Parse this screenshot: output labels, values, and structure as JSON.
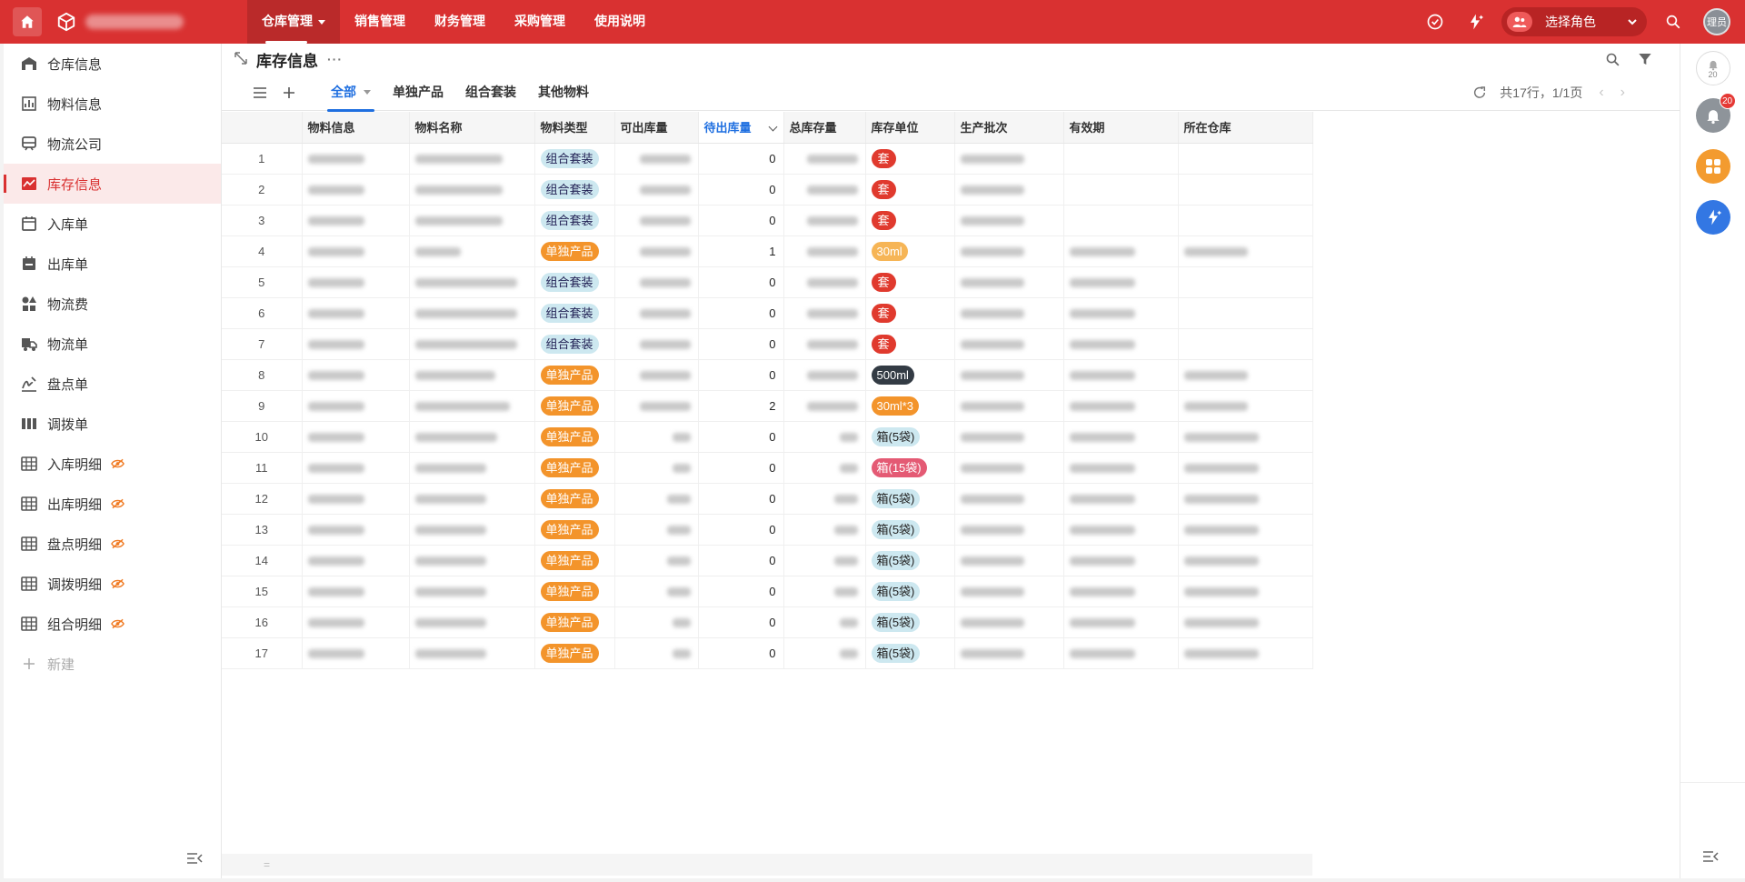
{
  "topbar": {
    "nav": [
      {
        "label": "仓库管理",
        "active": true,
        "has_caret": true
      },
      {
        "label": "销售管理"
      },
      {
        "label": "财务管理"
      },
      {
        "label": "采购管理"
      },
      {
        "label": "使用说明"
      }
    ],
    "role_select_label": "选择角色",
    "avatar_text": "理员"
  },
  "sidebar": {
    "items": [
      {
        "label": "仓库信息",
        "icon": "warehouse-icon"
      },
      {
        "label": "物料信息",
        "icon": "bar-chart-icon"
      },
      {
        "label": "物流公司",
        "icon": "train-icon"
      },
      {
        "label": "库存信息",
        "icon": "trend-chart-icon",
        "active": true
      },
      {
        "label": "入库单",
        "icon": "calendar-in-icon"
      },
      {
        "label": "出库单",
        "icon": "calendar-out-icon"
      },
      {
        "label": "物流费",
        "icon": "shapes-icon"
      },
      {
        "label": "物流单",
        "icon": "truck-icon"
      },
      {
        "label": "盘点单",
        "icon": "signature-icon"
      },
      {
        "label": "调拨单",
        "icon": "columns-icon"
      },
      {
        "label": "入库明细",
        "icon": "table-icon",
        "hidden_icon": true
      },
      {
        "label": "出库明细",
        "icon": "table-icon",
        "hidden_icon": true
      },
      {
        "label": "盘点明细",
        "icon": "table-icon",
        "hidden_icon": true
      },
      {
        "label": "调拨明细",
        "icon": "table-icon",
        "hidden_icon": true
      },
      {
        "label": "组合明细",
        "icon": "table-icon",
        "hidden_icon": true
      }
    ],
    "new_label": "新建"
  },
  "page": {
    "title": "库存信息",
    "more": "···",
    "tabs": [
      {
        "label": "全部",
        "active": true,
        "has_caret": true
      },
      {
        "label": "单独产品"
      },
      {
        "label": "组合套装"
      },
      {
        "label": "其他物料"
      }
    ],
    "summary": "共17行，1/1页"
  },
  "table": {
    "columns": [
      "",
      "物料信息",
      "物料名称",
      "物料类型",
      "可出库量",
      "待出库量",
      "总库存量",
      "库存单位",
      "生产批次",
      "有效期",
      "所在仓库"
    ],
    "sorted_column": "待出库量",
    "rows": [
      {
        "idx": "1",
        "type": "组合套装",
        "type_class": "combo",
        "pending": "0",
        "unit": "套",
        "unit_class": "set",
        "w": [
          62,
          96,
          56,
          56,
          70,
          0,
          0
        ]
      },
      {
        "idx": "2",
        "type": "组合套装",
        "type_class": "combo",
        "pending": "0",
        "unit": "套",
        "unit_class": "set",
        "w": [
          62,
          96,
          56,
          56,
          70,
          0,
          0
        ]
      },
      {
        "idx": "3",
        "type": "组合套装",
        "type_class": "combo",
        "pending": "0",
        "unit": "套",
        "unit_class": "set",
        "w": [
          62,
          96,
          56,
          56,
          70,
          0,
          0
        ]
      },
      {
        "idx": "4",
        "type": "单独产品",
        "type_class": "single",
        "pending": "1",
        "unit": "30ml",
        "unit_class": "ml30",
        "w": [
          62,
          50,
          56,
          56,
          70,
          72,
          70
        ]
      },
      {
        "idx": "5",
        "type": "组合套装",
        "type_class": "combo",
        "pending": "0",
        "unit": "套",
        "unit_class": "set",
        "w": [
          62,
          112,
          56,
          56,
          70,
          72,
          0
        ]
      },
      {
        "idx": "6",
        "type": "组合套装",
        "type_class": "combo",
        "pending": "0",
        "unit": "套",
        "unit_class": "set",
        "w": [
          62,
          112,
          56,
          56,
          70,
          72,
          0
        ]
      },
      {
        "idx": "7",
        "type": "组合套装",
        "type_class": "combo",
        "pending": "0",
        "unit": "套",
        "unit_class": "set",
        "w": [
          62,
          112,
          56,
          56,
          70,
          72,
          0
        ]
      },
      {
        "idx": "8",
        "type": "单独产品",
        "type_class": "single",
        "pending": "0",
        "unit": "500ml",
        "unit_class": "ml500",
        "w": [
          62,
          88,
          56,
          56,
          70,
          72,
          70
        ]
      },
      {
        "idx": "9",
        "type": "单独产品",
        "type_class": "single",
        "pending": "2",
        "unit": "30ml*3",
        "unit_class": "ml30x3",
        "w": [
          62,
          104,
          56,
          56,
          70,
          72,
          70
        ]
      },
      {
        "idx": "10",
        "type": "单独产品",
        "type_class": "single",
        "pending": "0",
        "unit": "箱(5袋)",
        "unit_class": "box5",
        "w": [
          62,
          90,
          20,
          20,
          70,
          72,
          82
        ]
      },
      {
        "idx": "11",
        "type": "单独产品",
        "type_class": "single",
        "pending": "0",
        "unit": "箱(15袋)",
        "unit_class": "box15",
        "w": [
          62,
          78,
          20,
          20,
          70,
          72,
          82
        ]
      },
      {
        "idx": "12",
        "type": "单独产品",
        "type_class": "single",
        "pending": "0",
        "unit": "箱(5袋)",
        "unit_class": "box5",
        "w": [
          62,
          78,
          26,
          26,
          70,
          72,
          82
        ]
      },
      {
        "idx": "13",
        "type": "单独产品",
        "type_class": "single",
        "pending": "0",
        "unit": "箱(5袋)",
        "unit_class": "box5",
        "w": [
          62,
          78,
          26,
          26,
          70,
          72,
          82
        ]
      },
      {
        "idx": "14",
        "type": "单独产品",
        "type_class": "single",
        "pending": "0",
        "unit": "箱(5袋)",
        "unit_class": "box5",
        "w": [
          62,
          78,
          26,
          26,
          70,
          72,
          82
        ]
      },
      {
        "idx": "15",
        "type": "单独产品",
        "type_class": "single",
        "pending": "0",
        "unit": "箱(5袋)",
        "unit_class": "box5",
        "w": [
          62,
          78,
          26,
          26,
          70,
          72,
          82
        ]
      },
      {
        "idx": "16",
        "type": "单独产品",
        "type_class": "single",
        "pending": "0",
        "unit": "箱(5袋)",
        "unit_class": "box5",
        "w": [
          62,
          78,
          20,
          20,
          70,
          72,
          82
        ]
      },
      {
        "idx": "17",
        "type": "单独产品",
        "type_class": "single",
        "pending": "0",
        "unit": "箱(5袋)",
        "unit_class": "box5",
        "w": [
          62,
          78,
          20,
          20,
          70,
          72,
          82
        ]
      }
    ]
  },
  "rail": {
    "bell_count": "20",
    "notification_badge": "20"
  },
  "footer_marker": "="
}
